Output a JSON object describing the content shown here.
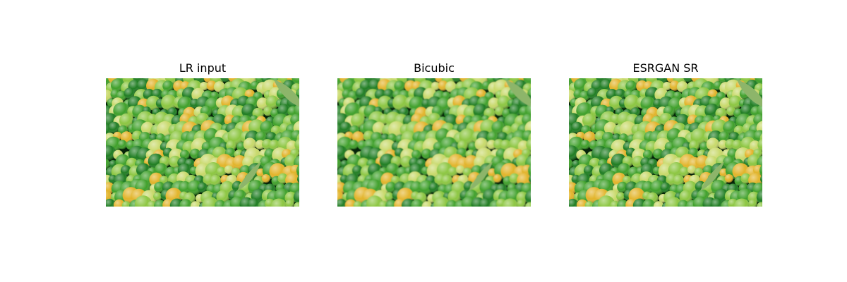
{
  "figure": {
    "panels": [
      {
        "title": "LR input"
      },
      {
        "title": "Bicubic"
      },
      {
        "title": "ESRGAN SR"
      }
    ]
  },
  "scene": {
    "subject": "pile of limes and lemons",
    "colors": {
      "background": "#06240a",
      "dark_green": "#1f7d22",
      "mid_green": "#3fa02a",
      "light_green": "#8cc641",
      "pale_yellow_green": "#c8d96a",
      "yellow": "#e2b42a",
      "leaf": "#8db56a"
    }
  }
}
